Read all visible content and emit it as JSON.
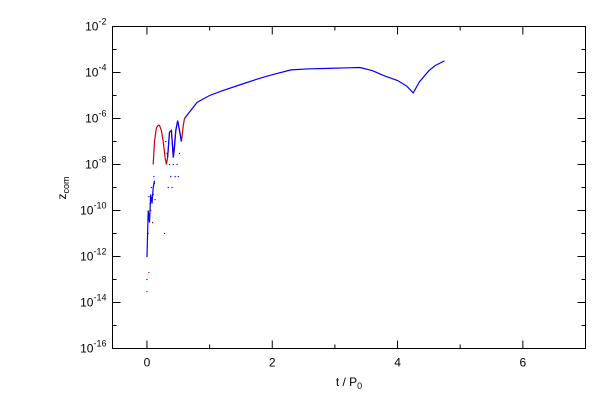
{
  "chart_data": {
    "type": "line",
    "title": "",
    "xlabel": {
      "main": "t / P",
      "sub": "0"
    },
    "ylabel": {
      "main": "z",
      "sub": "com"
    },
    "xlim": [
      -0.55,
      7.0
    ],
    "ylim_log10": [
      -16,
      -2
    ],
    "yscale": "log",
    "grid": false,
    "legend": "none",
    "x_ticks": [
      0,
      2,
      4,
      6
    ],
    "x_tick_labels": [
      "0",
      "2",
      "4",
      "6"
    ],
    "y_ticks_log10": [
      -16,
      -14,
      -12,
      -10,
      -8,
      -6,
      -4,
      -2
    ],
    "y_tick_labels": [
      {
        "base": "10",
        "exp": "-16"
      },
      {
        "base": "10",
        "exp": "-14"
      },
      {
        "base": "10",
        "exp": "-12"
      },
      {
        "base": "10",
        "exp": "-10"
      },
      {
        "base": "10",
        "exp": "-8"
      },
      {
        "base": "10",
        "exp": "-6"
      },
      {
        "base": "10",
        "exp": "-4"
      },
      {
        "base": "10",
        "exp": "-2"
      }
    ],
    "series": [
      {
        "color": "#0000ff",
        "style": "line",
        "x": [
          0.6,
          0.8,
          1.0,
          1.2,
          1.5,
          1.8,
          2.0,
          2.3,
          2.6,
          2.9,
          3.2,
          3.4,
          3.6,
          3.8,
          4.0,
          4.15,
          4.25,
          4.35,
          4.5,
          4.6,
          4.75
        ],
        "y": [
          1e-06,
          5e-06,
          1e-05,
          1.6e-05,
          3e-05,
          5.6e-05,
          8e-05,
          0.00013,
          0.000145,
          0.00015,
          0.00016,
          0.000165,
          0.00012,
          7e-05,
          4.5e-05,
          2.5e-05,
          1.3e-05,
          4e-05,
          0.00012,
          0.0002,
          0.00032
        ]
      },
      {
        "color": "#0000ff",
        "style": "line",
        "x": [
          0.0,
          0.02,
          0.04,
          0.06,
          0.08,
          0.1,
          0.12
        ],
        "y": [
          1e-12,
          1e-10,
          3e-11,
          5e-10,
          2e-10,
          1e-09,
          2e-09
        ]
      },
      {
        "color": "#cc0000",
        "style": "line",
        "x": [
          0.1,
          0.12,
          0.15,
          0.18,
          0.2,
          0.23,
          0.26,
          0.29,
          0.31,
          0.33,
          0.36,
          0.39,
          0.42,
          0.44,
          0.46,
          0.49,
          0.52,
          0.55,
          0.58,
          0.6
        ],
        "y": [
          1e-08,
          1e-07,
          4e-07,
          5e-07,
          5e-07,
          3e-07,
          1e-07,
          2e-08,
          1e-08,
          2e-08,
          2.5e-07,
          3e-07,
          2e-08,
          5e-08,
          3e-07,
          8e-07,
          3e-07,
          1e-07,
          5e-07,
          1e-06
        ]
      },
      {
        "color": "#0000ff",
        "style": "line",
        "x": [
          0.33,
          0.36,
          0.39,
          0.42,
          0.46,
          0.49,
          0.52,
          0.55
        ],
        "y": [
          2e-08,
          2.5e-07,
          3e-07,
          2e-08,
          3e-07,
          8e-07,
          3e-07,
          1e-07
        ]
      },
      {
        "color": "#0000ff",
        "style": "points",
        "x": [
          0.0,
          0.0,
          0.03,
          0.05,
          0.07,
          0.08,
          0.1,
          0.11,
          0.12,
          0.3,
          0.32,
          0.34,
          0.36,
          0.38,
          0.4,
          0.42,
          0.45,
          0.48,
          0.5,
          0.52,
          0.28
        ],
        "y": [
          1e-13,
          1e-12,
          4e-10,
          2e-10,
          1e-09,
          3e-10,
          5e-10,
          3e-09,
          1.5e-09,
          1e-07,
          3e-08,
          1e-09,
          1e-08,
          3e-09,
          1e-09,
          1e-08,
          3e-09,
          1e-08,
          3e-09,
          3e-08,
          1e-11
        ]
      },
      {
        "color": "#cc0000",
        "style": "points",
        "x": [
          0.0,
          0.0,
          0.02,
          0.03,
          0.04,
          0.06,
          0.09,
          0.13
        ],
        "y": [
          2e-16,
          3e-14,
          1e-11,
          2e-13,
          5e-11,
          1e-10,
          3e-11,
          3e-10
        ]
      }
    ]
  }
}
